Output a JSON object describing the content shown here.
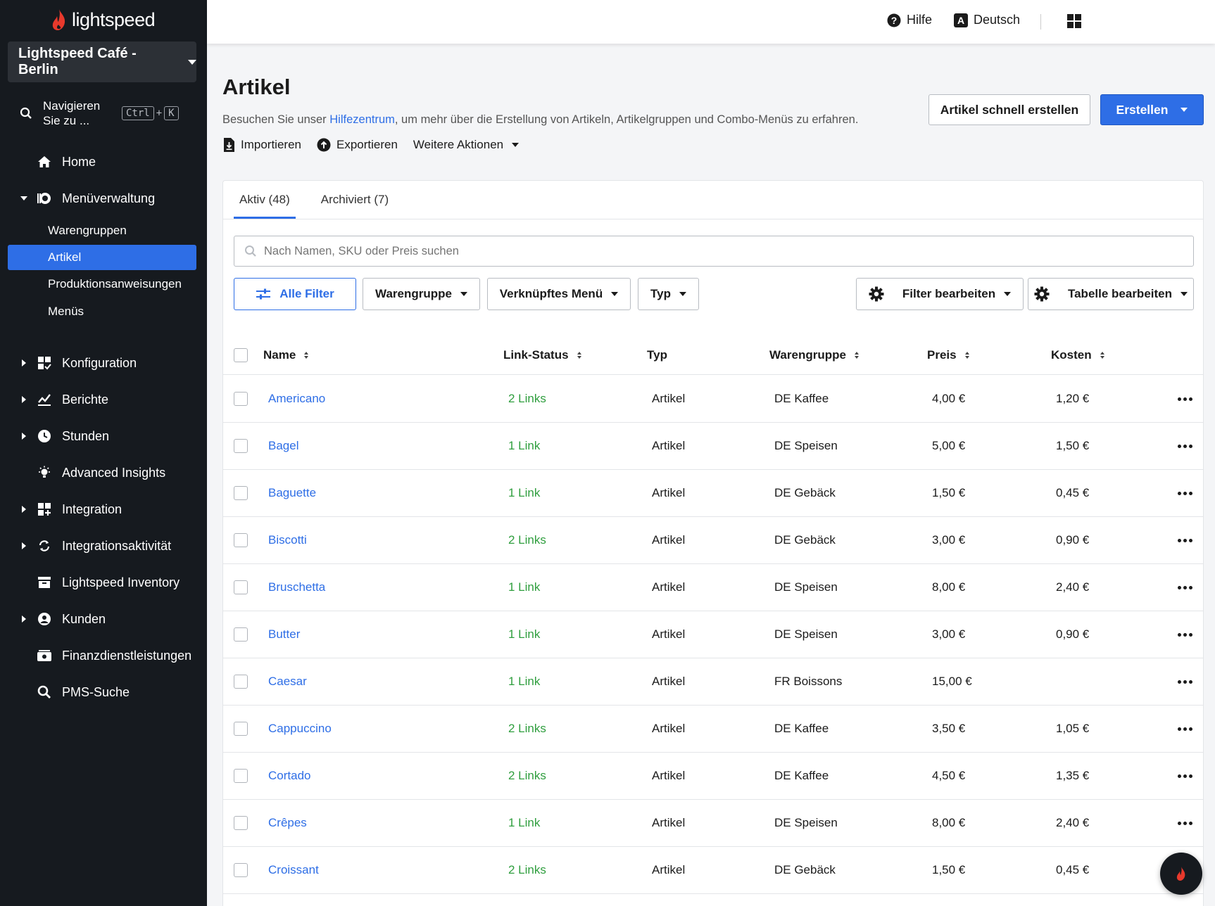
{
  "brand": {
    "name": "lightspeed",
    "accent": "#2e6ee6",
    "flame_color": "#e8392c"
  },
  "sidebar": {
    "venue": "Lightspeed Café - Berlin",
    "search_label": "Navigieren Sie zu ...",
    "shortcut": [
      "Ctrl",
      "+",
      "K"
    ],
    "items": [
      {
        "label": "Home",
        "icon": "home-icon"
      },
      {
        "label": "Menüverwaltung",
        "icon": "menu-management-icon",
        "expanded": true
      },
      {
        "label": "Konfiguration",
        "icon": "configuration-icon"
      },
      {
        "label": "Berichte",
        "icon": "reports-icon"
      },
      {
        "label": "Stunden",
        "icon": "clock-icon"
      },
      {
        "label": "Advanced Insights",
        "icon": "lightbulb-icon"
      },
      {
        "label": "Integration",
        "icon": "integration-icon"
      },
      {
        "label": "Integrationsaktivität",
        "icon": "sync-icon"
      },
      {
        "label": "Lightspeed Inventory",
        "icon": "inventory-icon"
      },
      {
        "label": "Kunden",
        "icon": "customer-icon"
      },
      {
        "label": "Finanzdienstleistungen",
        "icon": "finance-icon"
      },
      {
        "label": "PMS-Suche",
        "icon": "search-icon"
      }
    ],
    "subitems": [
      "Warengruppen",
      "Artikel",
      "Produktionsanweisungen",
      "Menüs"
    ],
    "active_subitem": "Artikel"
  },
  "topbar": {
    "help": "Hilfe",
    "language": "Deutsch"
  },
  "page": {
    "title": "Artikel",
    "subtitle_pre": "Besuchen Sie unser ",
    "subtitle_link": "Hilfezentrum",
    "subtitle_post": ", um mehr über die Erstellung von Artikeln, Artikelgruppen und Combo-Menüs zu erfahren.",
    "import": "Importieren",
    "export": "Exportieren",
    "more_actions": "Weitere Aktionen",
    "quick_create": "Artikel schnell erstellen",
    "create": "Erstellen"
  },
  "tabs": [
    {
      "label": "Aktiv (48)",
      "active": true
    },
    {
      "label": "Archiviert (7)",
      "active": false
    }
  ],
  "search": {
    "placeholder": "Nach Namen, SKU oder Preis suchen",
    "value": ""
  },
  "filters": {
    "all": "Alle Filter",
    "group": "Warengruppe",
    "linked_menu": "Verknüpftes Menü",
    "type": "Typ",
    "edit_filters": "Filter bearbeiten",
    "edit_table": "Tabelle bearbeiten"
  },
  "table": {
    "columns": [
      "Name",
      "Link-Status",
      "Typ",
      "Warengruppe",
      "Preis",
      "Kosten"
    ],
    "rows": [
      {
        "name": "Americano",
        "link": "2 Links",
        "type": "Artikel",
        "group": "DE Kaffee",
        "price": "4,00 €",
        "cost": "1,20 €"
      },
      {
        "name": "Bagel",
        "link": "1 Link",
        "type": "Artikel",
        "group": "DE Speisen",
        "price": "5,00 €",
        "cost": "1,50 €"
      },
      {
        "name": "Baguette",
        "link": "1 Link",
        "type": "Artikel",
        "group": "DE Gebäck",
        "price": "1,50 €",
        "cost": "0,45 €"
      },
      {
        "name": "Biscotti",
        "link": "2 Links",
        "type": "Artikel",
        "group": "DE Gebäck",
        "price": "3,00 €",
        "cost": "0,90 €"
      },
      {
        "name": "Bruschetta",
        "link": "1 Link",
        "type": "Artikel",
        "group": "DE Speisen",
        "price": "8,00 €",
        "cost": "2,40 €"
      },
      {
        "name": "Butter",
        "link": "1 Link",
        "type": "Artikel",
        "group": "DE Speisen",
        "price": "3,00 €",
        "cost": "0,90 €"
      },
      {
        "name": "Caesar",
        "link": "1 Link",
        "type": "Artikel",
        "group": "FR Boissons",
        "price": "15,00 €",
        "cost": ""
      },
      {
        "name": "Cappuccino",
        "link": "2 Links",
        "type": "Artikel",
        "group": "DE Kaffee",
        "price": "3,50 €",
        "cost": "1,05 €"
      },
      {
        "name": "Cortado",
        "link": "2 Links",
        "type": "Artikel",
        "group": "DE Kaffee",
        "price": "4,50 €",
        "cost": "1,35 €"
      },
      {
        "name": "Crêpes",
        "link": "1 Link",
        "type": "Artikel",
        "group": "DE Speisen",
        "price": "8,00 €",
        "cost": "2,40 €"
      },
      {
        "name": "Croissant",
        "link": "2 Links",
        "type": "Artikel",
        "group": "DE Gebäck",
        "price": "1,50 €",
        "cost": "0,45 €"
      }
    ]
  }
}
